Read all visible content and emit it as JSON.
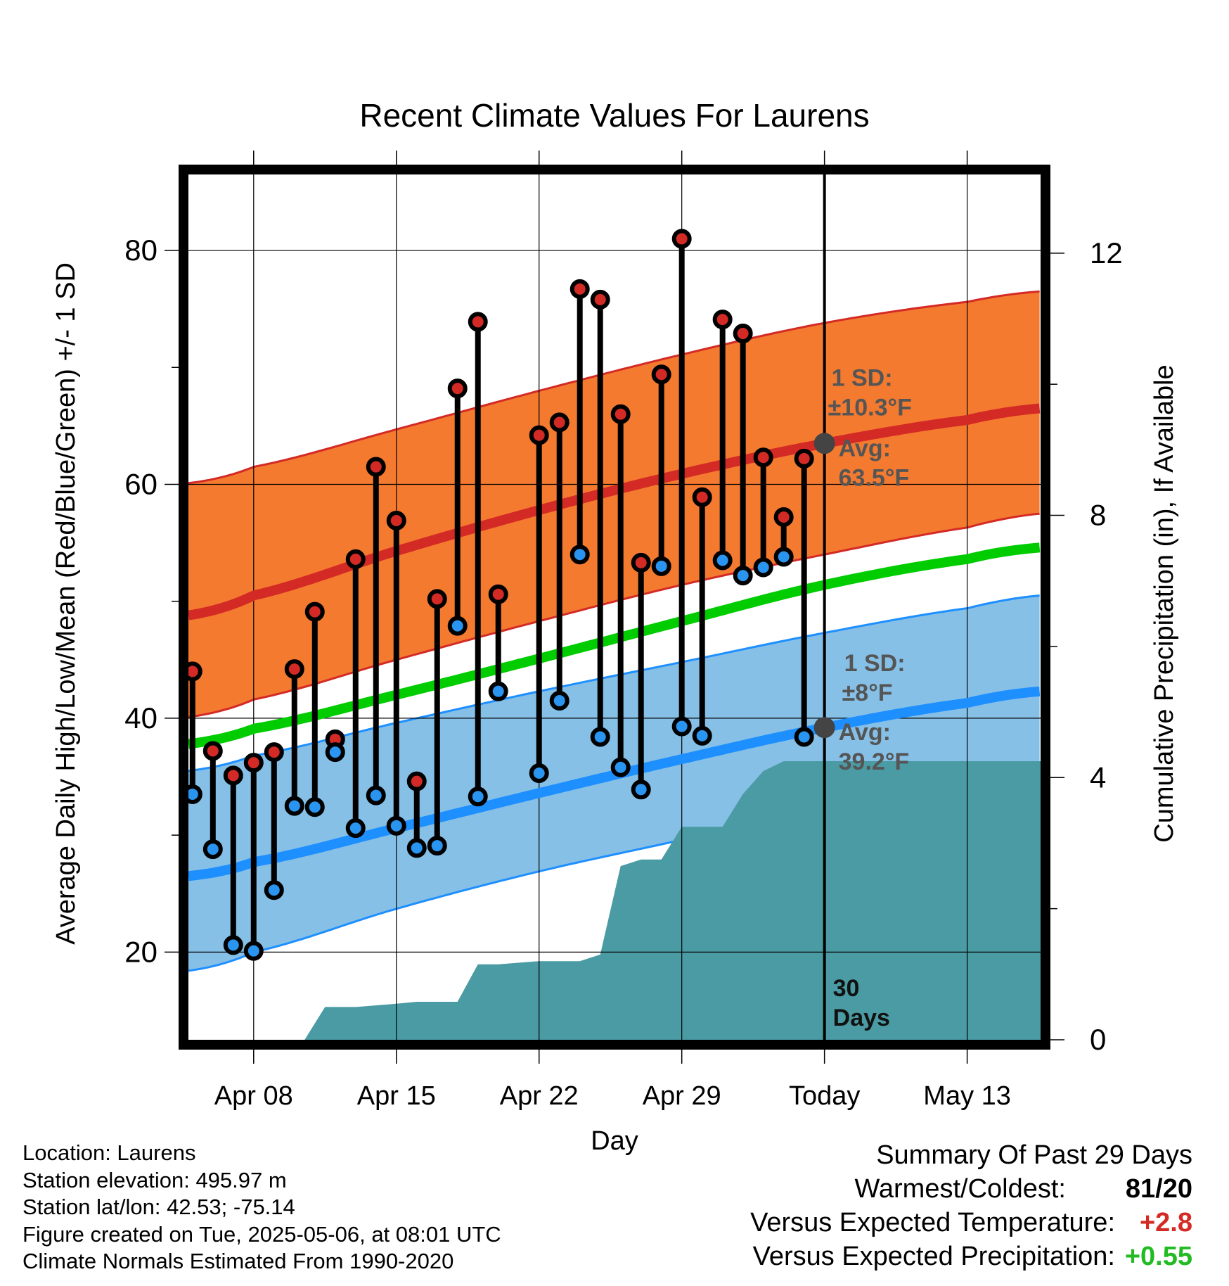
{
  "title": "Recent Climate Values For Laurens",
  "chart_data": {
    "type": "line",
    "title": "Recent Climate Values For Laurens",
    "xlabel": "Day",
    "ylabel_left": "Average Daily High/Low/Mean (Red/Blue/Green) +/- 1 SD",
    "ylabel_right": "Cumulative Precipitation (in), If Available",
    "x_tick_labels": [
      "Apr 08",
      "Apr 15",
      "Apr 22",
      "Apr 29",
      "Today",
      "May 13"
    ],
    "x_tick_days": [
      8,
      15,
      22,
      29,
      36,
      43
    ],
    "x_range_days": [
      4.8,
      46.6
    ],
    "ylim_left": [
      12.5,
      86.5
    ],
    "yticks_left": [
      20,
      40,
      60,
      80
    ],
    "ylim_right": [
      0,
      13.2
    ],
    "yticks_right": [
      0,
      4,
      8,
      12
    ],
    "grid": true,
    "today_day": 36,
    "normals": {
      "high_mean": [
        [
          4.8,
          48.8
        ],
        [
          8,
          50.5
        ],
        [
          15,
          54.3
        ],
        [
          22,
          57.8
        ],
        [
          29,
          60.9
        ],
        [
          36,
          63.5
        ],
        [
          43,
          65.5
        ],
        [
          46.6,
          66.5
        ]
      ],
      "high_upper": [
        [
          4.8,
          60.1
        ],
        [
          8,
          61.5
        ],
        [
          15,
          64.7
        ],
        [
          22,
          68.0
        ],
        [
          29,
          71.1
        ],
        [
          36,
          73.8
        ],
        [
          43,
          75.6
        ],
        [
          46.6,
          76.5
        ]
      ],
      "high_lower": [
        [
          4.8,
          40.1
        ],
        [
          8,
          41.6
        ],
        [
          15,
          45.0
        ],
        [
          22,
          48.3
        ],
        [
          29,
          51.4
        ],
        [
          36,
          54.0
        ],
        [
          43,
          56.3
        ],
        [
          46.6,
          57.5
        ]
      ],
      "mean_normal": [
        [
          4.8,
          37.8
        ],
        [
          8,
          39.1
        ],
        [
          15,
          42.0
        ],
        [
          22,
          45.1
        ],
        [
          29,
          48.3
        ],
        [
          36,
          51.4
        ],
        [
          43,
          53.6
        ],
        [
          46.6,
          54.6
        ]
      ],
      "low_mean": [
        [
          4.8,
          26.5
        ],
        [
          8,
          27.7
        ],
        [
          15,
          30.6
        ],
        [
          22,
          33.6
        ],
        [
          29,
          36.5
        ],
        [
          36,
          39.2
        ],
        [
          43,
          41.3
        ],
        [
          46.6,
          42.3
        ]
      ],
      "low_upper": [
        [
          4.8,
          35.5
        ],
        [
          8,
          36.8
        ],
        [
          15,
          39.6
        ],
        [
          22,
          42.3
        ],
        [
          29,
          44.8
        ],
        [
          36,
          47.3
        ],
        [
          43,
          49.4
        ],
        [
          46.6,
          50.5
        ]
      ],
      "low_lower": [
        [
          4.8,
          18.4
        ],
        [
          8,
          20.0
        ],
        [
          15,
          23.7
        ],
        [
          22,
          26.9
        ],
        [
          29,
          29.6
        ],
        [
          36,
          32.4
        ],
        [
          43,
          34.4
        ],
        [
          46.6,
          35.4
        ]
      ]
    },
    "daily": [
      {
        "day": 5,
        "high": 44.0,
        "low": 33.5
      },
      {
        "day": 6,
        "high": 37.2,
        "low": 28.8
      },
      {
        "day": 7,
        "high": 35.1,
        "low": 20.6
      },
      {
        "day": 8,
        "high": 36.2,
        "low": 20.1
      },
      {
        "day": 9,
        "high": 37.1,
        "low": 25.3
      },
      {
        "day": 10,
        "high": 44.2,
        "low": 32.5
      },
      {
        "day": 11,
        "high": 49.1,
        "low": 32.4
      },
      {
        "day": 12,
        "high": 38.2,
        "low": 37.1
      },
      {
        "day": 13,
        "high": 53.6,
        "low": 30.6
      },
      {
        "day": 14,
        "high": 61.5,
        "low": 33.4
      },
      {
        "day": 15,
        "high": 56.9,
        "low": 30.8
      },
      {
        "day": 16,
        "high": 34.6,
        "low": 28.9
      },
      {
        "day": 17,
        "high": 50.2,
        "low": 29.1
      },
      {
        "day": 18,
        "high": 68.2,
        "low": 47.9
      },
      {
        "day": 19,
        "high": 73.9,
        "low": 33.3
      },
      {
        "day": 20,
        "high": 50.6,
        "low": 42.3
      },
      {
        "day": 22,
        "high": 64.2,
        "low": 35.3
      },
      {
        "day": 23,
        "high": 65.3,
        "low": 41.5
      },
      {
        "day": 24,
        "high": 76.7,
        "low": 54.0
      },
      {
        "day": 25,
        "high": 75.8,
        "low": 38.4
      },
      {
        "day": 26,
        "high": 66.0,
        "low": 35.8
      },
      {
        "day": 27,
        "high": 53.3,
        "low": 33.9
      },
      {
        "day": 28,
        "high": 69.4,
        "low": 53.0
      },
      {
        "day": 29,
        "high": 81.0,
        "low": 39.3
      },
      {
        "day": 30,
        "high": 58.9,
        "low": 38.5
      },
      {
        "day": 31,
        "high": 74.1,
        "low": 53.5
      },
      {
        "day": 32,
        "high": 72.9,
        "low": 52.2
      },
      {
        "day": 33,
        "high": 62.3,
        "low": 52.9
      },
      {
        "day": 34,
        "high": 57.2,
        "low": 53.8
      },
      {
        "day": 35,
        "high": 62.2,
        "low": 38.4
      }
    ],
    "cumulative_precip": [
      [
        4.8,
        0
      ],
      [
        10.5,
        0
      ],
      [
        11.5,
        0.5
      ],
      [
        13,
        0.5
      ],
      [
        15,
        0.55
      ],
      [
        16,
        0.58
      ],
      [
        17,
        0.58
      ],
      [
        18,
        0.58
      ],
      [
        19,
        1.15
      ],
      [
        20,
        1.15
      ],
      [
        22,
        1.2
      ],
      [
        24,
        1.2
      ],
      [
        25,
        1.3
      ],
      [
        26,
        2.65
      ],
      [
        27,
        2.75
      ],
      [
        28,
        2.75
      ],
      [
        29,
        3.25
      ],
      [
        30,
        3.25
      ],
      [
        31,
        3.25
      ],
      [
        32,
        3.75
      ],
      [
        33,
        4.1
      ],
      [
        34,
        4.25
      ],
      [
        35,
        4.25
      ],
      [
        36,
        4.25
      ],
      [
        46.6,
        4.25
      ]
    ],
    "annotations": {
      "high_sd_label": "1 SD:",
      "high_sd_value": "±10.3°F",
      "high_avg_label": "Avg:",
      "high_avg_value": "63.5°F",
      "low_sd_label": "1 SD:",
      "low_sd_value": "±8°F",
      "low_avg_label": "Avg:",
      "low_avg_value": "39.2°F",
      "days_line1": "30",
      "days_line2": "Days"
    }
  },
  "colors": {
    "high_band": "#f47a30",
    "high_line": "#d42a25",
    "low_band": "#86c0e7",
    "low_line": "#1e8fff",
    "mean_line": "#00cc00",
    "precip_fill": "#4a9ba3",
    "high_marker": "#d42a25",
    "low_marker": "#2a95f0",
    "annotation_text": "#555555",
    "avg_dot": "#444444",
    "positive_temp": "#d42a25",
    "positive_precip": "#22bb22"
  },
  "footer": {
    "location": "Location: Laurens",
    "elevation": "Station elevation: 495.97 m",
    "latlon": "Station lat/lon: 42.53; -75.14",
    "created": "Figure created on Tue, 2025-05-06, at 08:01 UTC",
    "normals": "Climate Normals Estimated From 1990-2020"
  },
  "summary": {
    "heading": "Summary Of Past 29 Days",
    "warm_cold_label": "Warmest/Coldest:",
    "warm_cold_value": "81/20",
    "temp_label": "Versus Expected Temperature:",
    "temp_value": "+2.8",
    "precip_label": "Versus Expected Precipitation:",
    "precip_value": "+0.55"
  }
}
